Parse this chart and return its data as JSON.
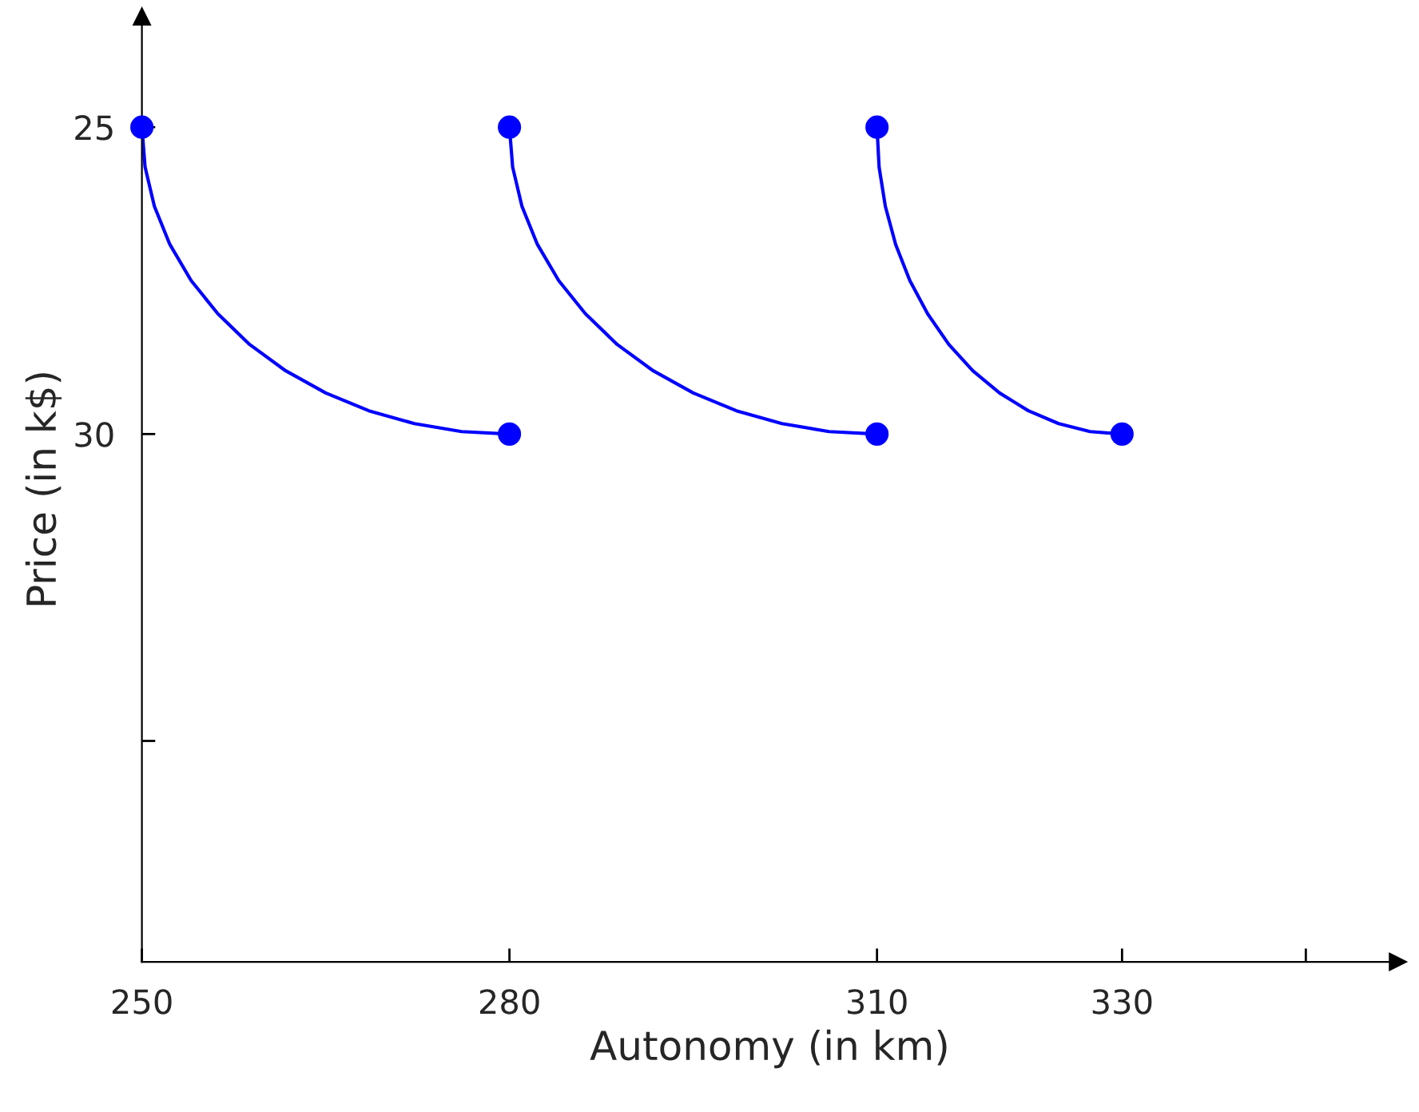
{
  "chart_data": {
    "type": "line",
    "xlabel": "Autonomy (in km)",
    "ylabel": "Price (in k$)",
    "xlim": [
      250,
      352.5
    ],
    "ylim": [
      38.6,
      23.2
    ],
    "xticks": [
      250,
      280,
      310,
      330,
      {
        "value": 345,
        "label": null
      }
    ],
    "yticks": [
      25,
      30,
      {
        "value": 35,
        "label": null
      }
    ],
    "grid": false,
    "legend": false,
    "line_style": "solid",
    "series": [
      {
        "color": "#0000ff",
        "marker": "none",
        "x": [
          250,
          250.26,
          251.02,
          252.28,
          254.02,
          256.2,
          258.79,
          261.74,
          265,
          268.52,
          272.24,
          276.09,
          280
        ],
        "values": [
          25,
          25.65,
          26.29,
          26.91,
          27.5,
          28.04,
          28.54,
          28.97,
          29.33,
          29.62,
          29.83,
          29.96,
          30
        ]
      },
      {
        "color": "#0000ff",
        "marker": "none",
        "x": [
          280,
          280.26,
          281.02,
          282.28,
          284.02,
          286.2,
          288.79,
          291.74,
          295,
          298.52,
          302.24,
          306.09,
          310
        ],
        "values": [
          25,
          25.65,
          26.29,
          26.91,
          27.5,
          28.04,
          28.54,
          28.97,
          29.33,
          29.62,
          29.83,
          29.96,
          30
        ]
      },
      {
        "color": "#0000ff",
        "marker": "none",
        "x": [
          310,
          310.17,
          310.68,
          311.52,
          312.68,
          314.13,
          315.86,
          317.82,
          320,
          322.35,
          324.82,
          327.39,
          330
        ],
        "values": [
          25,
          25.65,
          26.29,
          26.91,
          27.5,
          28.04,
          28.54,
          28.97,
          29.33,
          29.62,
          29.83,
          29.96,
          30
        ]
      },
      {
        "type": "scatter",
        "color": "#0000ff",
        "marker": "circle",
        "x": [
          250,
          280,
          310,
          280,
          310,
          330
        ],
        "values": [
          25,
          25,
          25,
          30,
          30,
          30
        ]
      }
    ]
  }
}
